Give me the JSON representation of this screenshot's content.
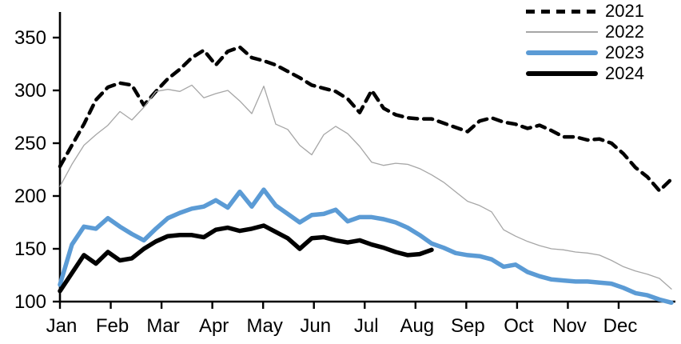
{
  "chart_data": {
    "type": "line",
    "title": "",
    "xlabel": "",
    "ylabel": "",
    "x_unit": "weekly",
    "grid": false,
    "legend_position": "top-right",
    "x_axis": {
      "tick_labels": [
        "Jan",
        "Feb",
        "Mar",
        "Apr",
        "May",
        "Jun",
        "Jul",
        "Aug",
        "Sep",
        "Oct",
        "Nov",
        "Dec"
      ]
    },
    "y_axis": {
      "ticks": [
        100,
        150,
        200,
        250,
        300,
        350
      ],
      "range": [
        100,
        374
      ]
    },
    "colors": {
      "black": "#000000",
      "gray": "#a6a6a6",
      "blue": "#5b9bd5"
    },
    "series": [
      {
        "name": "2021",
        "style": "dashed",
        "color": "#000000",
        "width": 4.5,
        "values": [
          228,
          248,
          268,
          291,
          303,
          307,
          305,
          286,
          299,
          311,
          320,
          331,
          338,
          324,
          337,
          341,
          331,
          328,
          324,
          318,
          312,
          305,
          302,
          299,
          292,
          279,
          300,
          283,
          277,
          274,
          273,
          273,
          269,
          265,
          261,
          271,
          274,
          270,
          268,
          264,
          267,
          262,
          256,
          256,
          253,
          254,
          250,
          240,
          227,
          218,
          205,
          216
        ]
      },
      {
        "name": "2022",
        "style": "solid",
        "color": "#a6a6a6",
        "width": 1.3,
        "values": [
          209,
          230,
          248,
          258,
          267,
          280,
          272,
          284,
          299,
          301,
          299,
          305,
          293,
          297,
          300,
          290,
          278,
          304,
          268,
          263,
          248,
          239,
          258,
          266,
          259,
          247,
          232,
          229,
          231,
          230,
          226,
          220,
          213,
          204,
          195,
          191,
          185,
          168,
          162,
          157,
          153,
          150,
          149,
          147,
          146,
          144,
          139,
          133,
          129,
          126,
          122,
          112
        ]
      },
      {
        "name": "2023",
        "style": "solid",
        "color": "#5b9bd5",
        "width": 5.5,
        "values": [
          116,
          154,
          171,
          169,
          179,
          171,
          164,
          158,
          169,
          179,
          184,
          188,
          190,
          196,
          189,
          204,
          190,
          206,
          191,
          183,
          175,
          182,
          183,
          187,
          176,
          180,
          180,
          178,
          175,
          170,
          163,
          155,
          151,
          146,
          144,
          143,
          140,
          133,
          135,
          128,
          124,
          121,
          120,
          119,
          119,
          118,
          117,
          113,
          108,
          106,
          102,
          99
        ]
      },
      {
        "name": "2024",
        "style": "solid",
        "color": "#000000",
        "width": 5.5,
        "values": [
          110,
          127,
          144,
          136,
          147,
          139,
          141,
          150,
          157,
          162,
          163,
          163,
          161,
          168,
          170,
          167,
          169,
          172,
          166,
          160,
          150,
          160,
          161,
          158,
          156,
          158,
          154,
          151,
          147,
          144,
          145,
          149
        ]
      }
    ]
  },
  "legend": {
    "items": [
      {
        "label": "2021"
      },
      {
        "label": "2022"
      },
      {
        "label": "2023"
      },
      {
        "label": "2024"
      }
    ]
  }
}
